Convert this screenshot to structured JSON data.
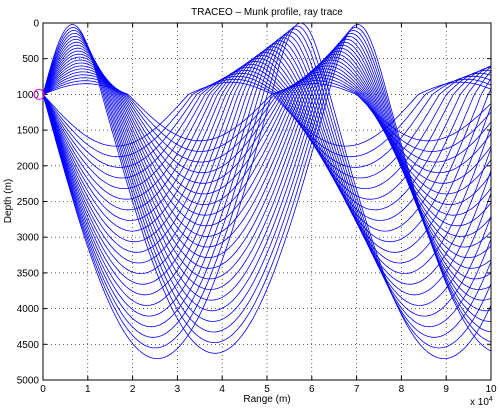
{
  "chart_data": {
    "type": "line",
    "title": "TRACEO – Munk profile, ray trace",
    "xlabel": "Range (m)",
    "ylabel": "Depth (m)",
    "x_exponent_label": "x 10",
    "x_exponent_power": "4",
    "x_multiplier": 10000,
    "xlim": [
      0,
      100000
    ],
    "ylim": [
      0,
      5000
    ],
    "y_inverted": true,
    "x_ticks": [
      0,
      10000,
      20000,
      30000,
      40000,
      50000,
      60000,
      70000,
      80000,
      90000,
      100000
    ],
    "x_tick_labels": [
      "0",
      "1",
      "2",
      "3",
      "4",
      "5",
      "6",
      "7",
      "8",
      "9",
      "10"
    ],
    "y_ticks": [
      0,
      500,
      1000,
      1500,
      2000,
      2500,
      3000,
      3500,
      4000,
      4500,
      5000
    ],
    "y_tick_labels": [
      "0",
      "500",
      "1000",
      "1500",
      "2000",
      "2500",
      "3000",
      "3500",
      "4000",
      "4500",
      "5000"
    ],
    "grid": "dotted",
    "ray_color": "#0000ff",
    "source": {
      "x": 0,
      "y": 1000,
      "marker": "circle",
      "color": "#ff00ff"
    },
    "ray_fan": {
      "n_rays": 42,
      "source_depth": 1000,
      "groups": [
        {
          "name": "",
          "first_turn_depth": [
            1700,
            1700
          ],
          "first_turn_range": [
            13000,
            26500
          ],
          "second_turn_depth": [
            0,
            4700
          ],
          "second_turn_range": [
            6000,
            25500
          ],
          "loop_range": [
            50000,
            62000
          ],
          "direction": "up-first"
        }
      ],
      "shallow_turn_depth_min": 0,
      "deep_turn_depth_max": 4720,
      "shadow_top_depth": 1650,
      "first_convergence": {
        "x": 50000,
        "y": 1000
      },
      "second_convergence": {
        "x": 97000,
        "y": 1000
      },
      "upper_peak_ranges": [
        6000,
        59000,
        72000
      ],
      "lower_trough_ranges": [
        25500,
        38000,
        90000
      ]
    }
  }
}
